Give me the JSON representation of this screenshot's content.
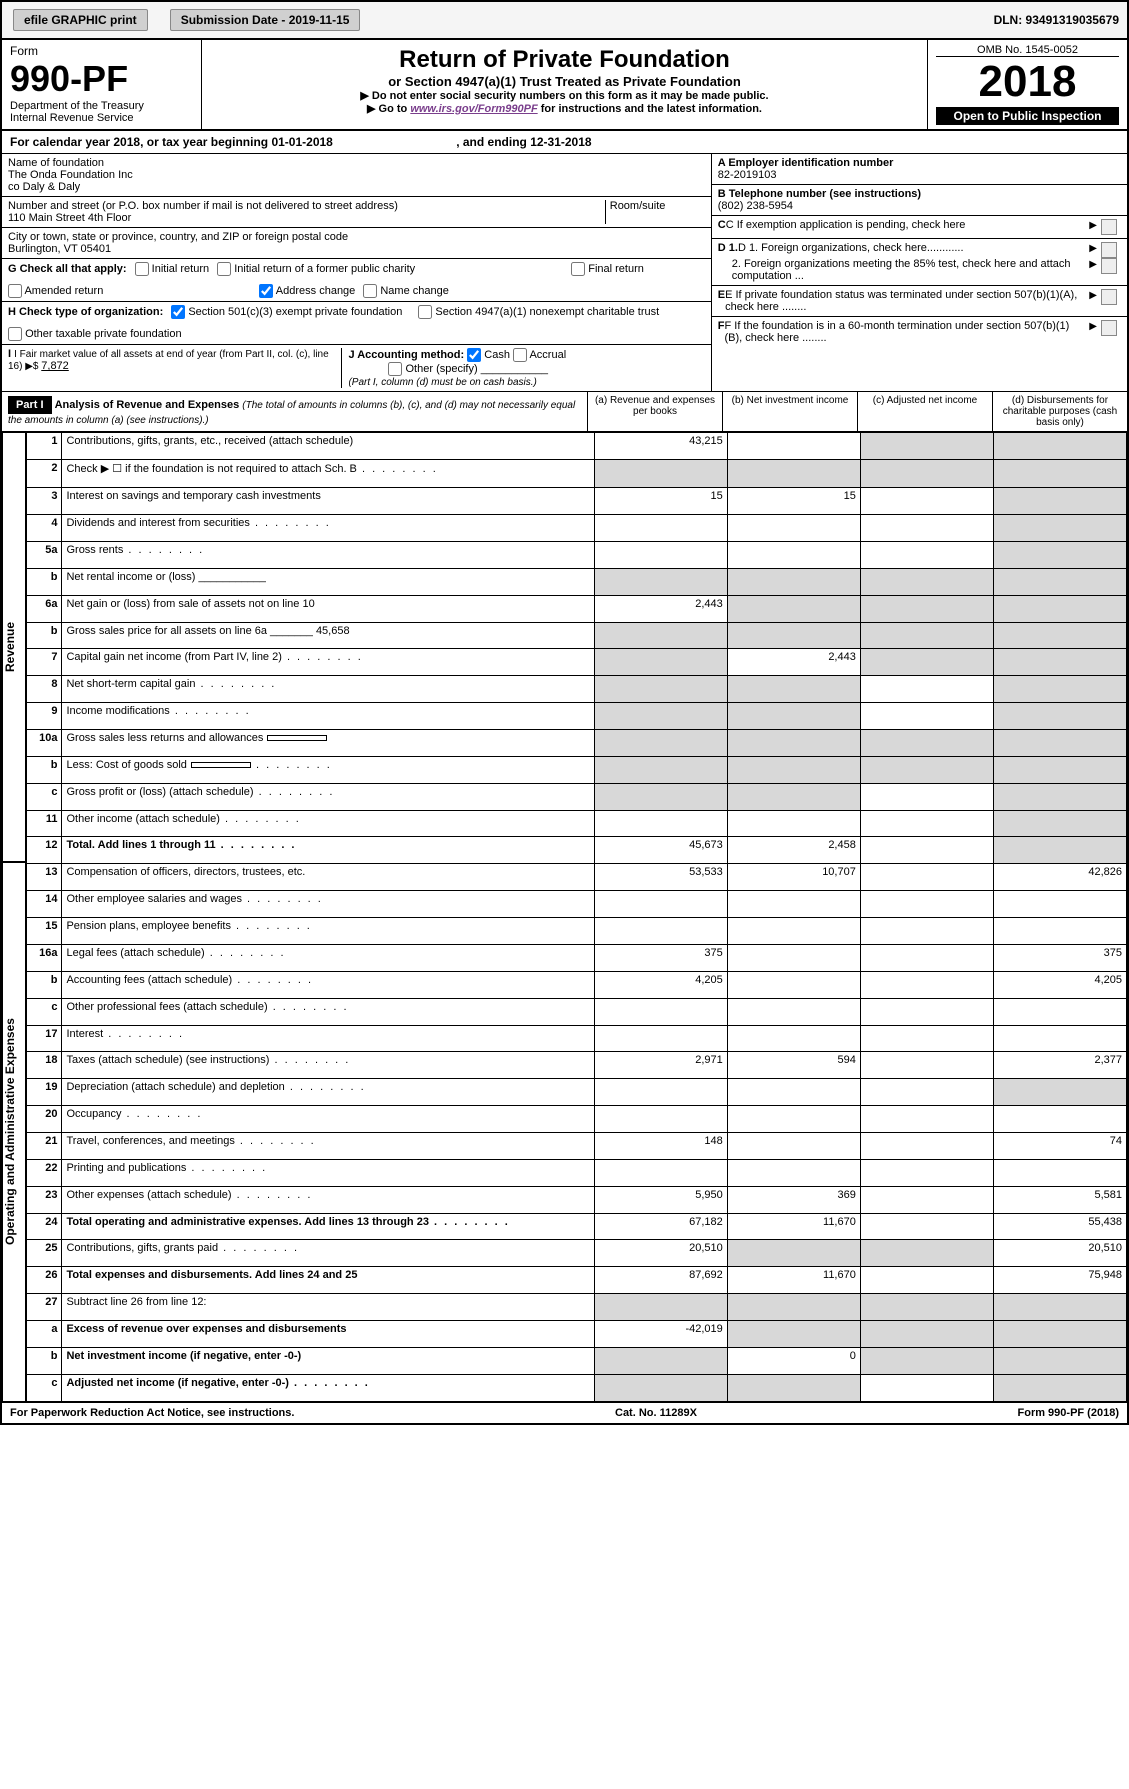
{
  "topbar": {
    "efile": "efile GRAPHIC print",
    "submission_label": "Submission Date - 2019-11-15",
    "dln": "DLN: 93491319035679"
  },
  "header": {
    "form": "Form",
    "form_no": "990-PF",
    "dept": "Department of the Treasury",
    "irs": "Internal Revenue Service",
    "title": "Return of Private Foundation",
    "subtitle": "or Section 4947(a)(1) Trust Treated as Private Foundation",
    "note1": "▶ Do not enter social security numbers on this form as it may be made public.",
    "note2": "▶ Go to ",
    "link": "www.irs.gov/Form990PF",
    "note2b": " for instructions and the latest information.",
    "omb": "OMB No. 1545-0052",
    "year": "2018",
    "openpub": "Open to Public Inspection"
  },
  "calendar": {
    "text1": "For calendar year 2018, or tax year beginning ",
    "begin": "01-01-2018",
    "text2": " , and ending ",
    "end": "12-31-2018"
  },
  "info": {
    "name_label": "Name of foundation",
    "name1": "The Onda Foundation Inc",
    "name2": "co Daly & Daly",
    "addr_label": "Number and street (or P.O. box number if mail is not delivered to street address)",
    "addr": "110 Main Street 4th Floor",
    "room_label": "Room/suite",
    "city_label": "City or town, state or province, country, and ZIP or foreign postal code",
    "city": "Burlington, VT  05401",
    "ein_label": "A Employer identification number",
    "ein": "82-2019103",
    "tel_label": "B Telephone number (see instructions)",
    "tel": "(802) 238-5954",
    "c_label": "C If exemption application is pending, check here",
    "d1": "D 1. Foreign organizations, check here............",
    "d2": "2. Foreign organizations meeting the 85% test, check here and attach computation ...",
    "e_label": "E If private foundation status was terminated under section 507(b)(1)(A), check here ........",
    "f_label": "F If the foundation is in a 60-month termination under section 507(b)(1)(B), check here ........"
  },
  "g": {
    "label": "G Check all that apply:",
    "opts": [
      "Initial return",
      "Initial return of a former public charity",
      "Final return",
      "Amended return",
      "Address change",
      "Name change"
    ]
  },
  "h": {
    "label": "H Check type of organization:",
    "opts": [
      "Section 501(c)(3) exempt private foundation",
      "Section 4947(a)(1) nonexempt charitable trust",
      "Other taxable private foundation"
    ]
  },
  "i": {
    "label": "I Fair market value of all assets at end of year (from Part II, col. (c), line 16) ▶$ ",
    "value": "7,872"
  },
  "j": {
    "label": "J Accounting method:",
    "cash": "Cash",
    "accrual": "Accrual",
    "other": "Other (specify)",
    "note": "(Part I, column (d) must be on cash basis.)"
  },
  "partI": {
    "tag": "Part I",
    "title": "Analysis of Revenue and Expenses",
    "note": "(The total of amounts in columns (b), (c), and (d) may not necessarily equal the amounts in column (a) (see instructions).)",
    "col_a": "(a)   Revenue and expenses per books",
    "col_b": "(b)  Net investment income",
    "col_c": "(c)  Adjusted net income",
    "col_d": "(d)  Disbursements for charitable purposes (cash basis only)"
  },
  "sections": {
    "revenue": "Revenue",
    "opadmin": "Operating and Administrative Expenses"
  },
  "rows": [
    {
      "n": "1",
      "d": "Contributions, gifts, grants, etc., received (attach schedule)",
      "a": "43,215",
      "b": "",
      "c": "gray",
      "dcol": "gray"
    },
    {
      "n": "2",
      "d": "Check ▶ ☐ if the foundation is not required to attach Sch. B",
      "a": "gray",
      "b": "gray",
      "c": "gray",
      "dcol": "gray",
      "dots": true
    },
    {
      "n": "3",
      "d": "Interest on savings and temporary cash investments",
      "a": "15",
      "b": "15",
      "c": "",
      "dcol": "gray"
    },
    {
      "n": "4",
      "d": "Dividends and interest from securities",
      "a": "",
      "b": "",
      "c": "",
      "dcol": "gray",
      "dots": true
    },
    {
      "n": "5a",
      "d": "Gross rents",
      "a": "",
      "b": "",
      "c": "",
      "dcol": "gray",
      "dots": true
    },
    {
      "n": "b",
      "d": "Net rental income or (loss)  ___________",
      "a": "gray",
      "b": "gray",
      "c": "gray",
      "dcol": "gray"
    },
    {
      "n": "6a",
      "d": "Net gain or (loss) from sale of assets not on line 10",
      "a": "2,443",
      "b": "gray",
      "c": "gray",
      "dcol": "gray"
    },
    {
      "n": "b",
      "d": "Gross sales price for all assets on line 6a _______",
      "inline": "45,658",
      "a": "gray",
      "b": "gray",
      "c": "gray",
      "dcol": "gray"
    },
    {
      "n": "7",
      "d": "Capital gain net income (from Part IV, line 2)",
      "a": "gray",
      "b": "2,443",
      "c": "gray",
      "dcol": "gray",
      "dots": true
    },
    {
      "n": "8",
      "d": "Net short-term capital gain",
      "a": "gray",
      "b": "gray",
      "c": "",
      "dcol": "gray",
      "dots": true
    },
    {
      "n": "9",
      "d": "Income modifications",
      "a": "gray",
      "b": "gray",
      "c": "",
      "dcol": "gray",
      "dots": true
    },
    {
      "n": "10a",
      "d": "Gross sales less returns and allowances",
      "a": "gray",
      "b": "gray",
      "c": "gray",
      "dcol": "gray",
      "inline_box": true
    },
    {
      "n": "b",
      "d": "Less: Cost of goods sold",
      "a": "gray",
      "b": "gray",
      "c": "gray",
      "dcol": "gray",
      "dots": true,
      "inline_box": true
    },
    {
      "n": "c",
      "d": "Gross profit or (loss) (attach schedule)",
      "a": "gray",
      "b": "gray",
      "c": "",
      "dcol": "gray",
      "dots": true
    },
    {
      "n": "11",
      "d": "Other income (attach schedule)",
      "a": "",
      "b": "",
      "c": "",
      "dcol": "gray",
      "dots": true
    },
    {
      "n": "12",
      "d": "Total. Add lines 1 through 11",
      "a": "45,673",
      "b": "2,458",
      "c": "",
      "dcol": "gray",
      "bold": true,
      "dots": true
    },
    {
      "n": "13",
      "d": "Compensation of officers, directors, trustees, etc.",
      "a": "53,533",
      "b": "10,707",
      "c": "",
      "dcol": "42,826"
    },
    {
      "n": "14",
      "d": "Other employee salaries and wages",
      "a": "",
      "b": "",
      "c": "",
      "dcol": "",
      "dots": true
    },
    {
      "n": "15",
      "d": "Pension plans, employee benefits",
      "a": "",
      "b": "",
      "c": "",
      "dcol": "",
      "dots": true
    },
    {
      "n": "16a",
      "d": "Legal fees (attach schedule)",
      "a": "375",
      "b": "",
      "c": "",
      "dcol": "375",
      "dots": true
    },
    {
      "n": "b",
      "d": "Accounting fees (attach schedule)",
      "a": "4,205",
      "b": "",
      "c": "",
      "dcol": "4,205",
      "dots": true
    },
    {
      "n": "c",
      "d": "Other professional fees (attach schedule)",
      "a": "",
      "b": "",
      "c": "",
      "dcol": "",
      "dots": true
    },
    {
      "n": "17",
      "d": "Interest",
      "a": "",
      "b": "",
      "c": "",
      "dcol": "",
      "dots": true
    },
    {
      "n": "18",
      "d": "Taxes (attach schedule) (see instructions)",
      "a": "2,971",
      "b": "594",
      "c": "",
      "dcol": "2,377",
      "dots": true
    },
    {
      "n": "19",
      "d": "Depreciation (attach schedule) and depletion",
      "a": "",
      "b": "",
      "c": "",
      "dcol": "gray",
      "dots": true
    },
    {
      "n": "20",
      "d": "Occupancy",
      "a": "",
      "b": "",
      "c": "",
      "dcol": "",
      "dots": true
    },
    {
      "n": "21",
      "d": "Travel, conferences, and meetings",
      "a": "148",
      "b": "",
      "c": "",
      "dcol": "74",
      "dots": true
    },
    {
      "n": "22",
      "d": "Printing and publications",
      "a": "",
      "b": "",
      "c": "",
      "dcol": "",
      "dots": true
    },
    {
      "n": "23",
      "d": "Other expenses (attach schedule)",
      "a": "5,950",
      "b": "369",
      "c": "",
      "dcol": "5,581",
      "dots": true,
      "icon": true
    },
    {
      "n": "24",
      "d": "Total operating and administrative expenses. Add lines 13 through 23",
      "a": "67,182",
      "b": "11,670",
      "c": "",
      "dcol": "55,438",
      "bold": true,
      "dots": true
    },
    {
      "n": "25",
      "d": "Contributions, gifts, grants paid",
      "a": "20,510",
      "b": "gray",
      "c": "gray",
      "dcol": "20,510",
      "dots": true
    },
    {
      "n": "26",
      "d": "Total expenses and disbursements. Add lines 24 and 25",
      "a": "87,692",
      "b": "11,670",
      "c": "",
      "dcol": "75,948",
      "bold": true
    },
    {
      "n": "27",
      "d": "Subtract line 26 from line 12:",
      "a": "gray",
      "b": "gray",
      "c": "gray",
      "dcol": "gray"
    },
    {
      "n": "a",
      "d": "Excess of revenue over expenses and disbursements",
      "a": "-42,019",
      "b": "gray",
      "c": "gray",
      "dcol": "gray",
      "bold": true
    },
    {
      "n": "b",
      "d": "Net investment income (if negative, enter -0-)",
      "a": "gray",
      "b": "0",
      "c": "gray",
      "dcol": "gray",
      "bold": true
    },
    {
      "n": "c",
      "d": "Adjusted net income (if negative, enter -0-)",
      "a": "gray",
      "b": "gray",
      "c": "",
      "dcol": "gray",
      "bold": true,
      "dots": true
    }
  ],
  "footer": {
    "left": "For Paperwork Reduction Act Notice, see instructions.",
    "center": "Cat. No. 11289X",
    "right": "Form 990-PF (2018)"
  },
  "colors": {
    "gray": "#d8d8d8",
    "link": "#7a3e8c"
  }
}
